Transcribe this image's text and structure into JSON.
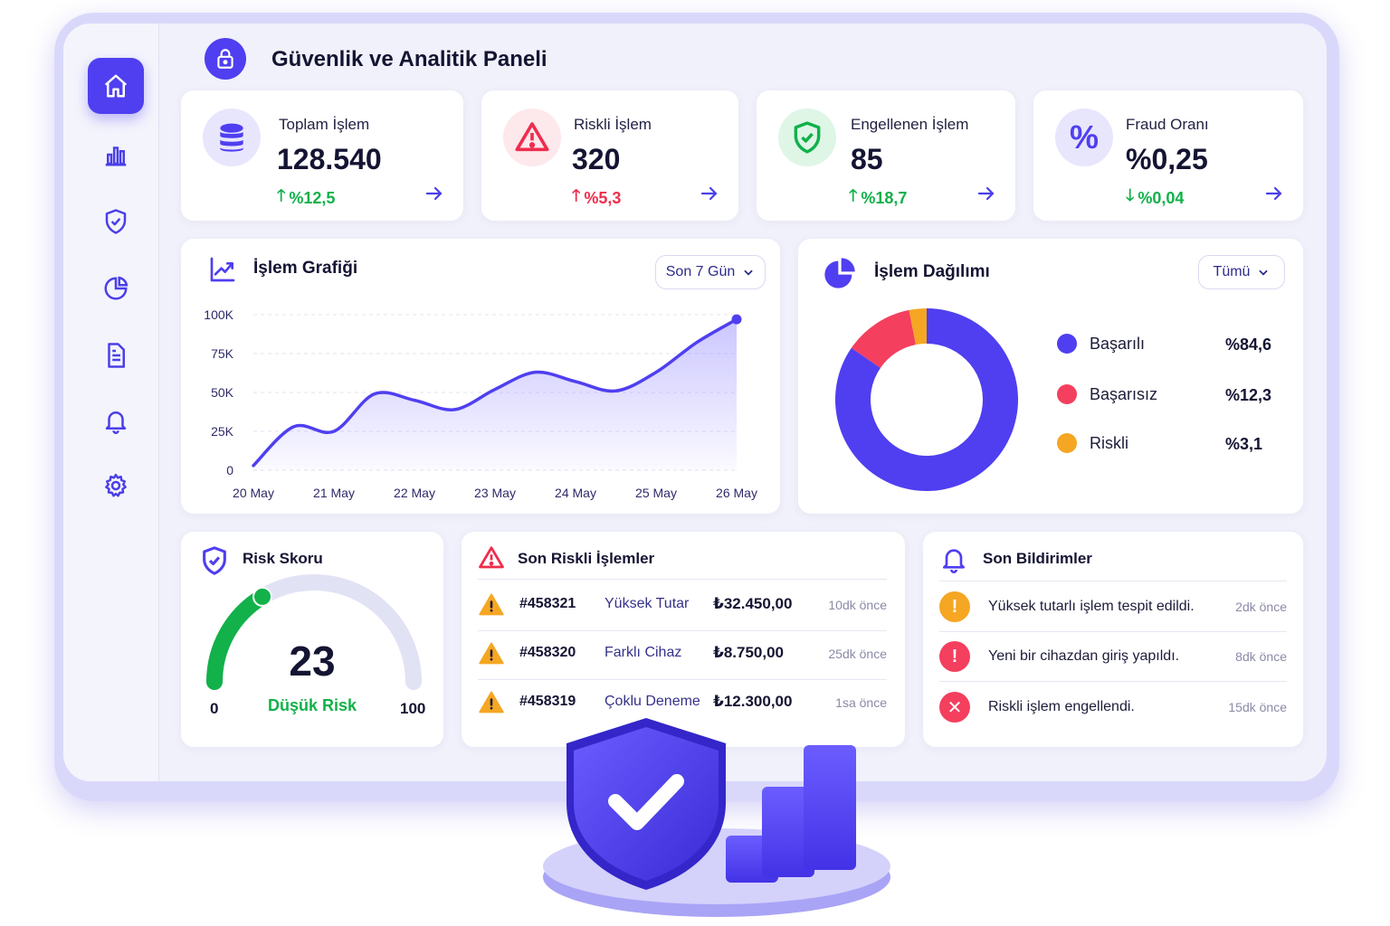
{
  "header": {
    "title": "Güvenlik ve Analitik Paneli",
    "icon": "lock-icon"
  },
  "sidebar": {
    "items": [
      {
        "name": "home",
        "icon": "home-icon",
        "active": true
      },
      {
        "name": "analytics",
        "icon": "bar-chart-icon",
        "active": false
      },
      {
        "name": "security",
        "icon": "shield-check-icon",
        "active": false
      },
      {
        "name": "reports",
        "icon": "pie-chart-icon",
        "active": false
      },
      {
        "name": "documents",
        "icon": "document-icon",
        "active": false
      },
      {
        "name": "notifications",
        "icon": "bell-icon",
        "active": false
      },
      {
        "name": "settings",
        "icon": "gear-icon",
        "active": false
      }
    ]
  },
  "stats": [
    {
      "label": "Toplam İşlem",
      "value": "128.540",
      "change": "%12,5",
      "direction": "up",
      "change_color": "#12b14a",
      "icon": "database-icon"
    },
    {
      "label": "Riskli İşlem",
      "value": "320",
      "change": "%5,3",
      "direction": "up",
      "change_color": "#ef2d4d",
      "icon": "warning-icon"
    },
    {
      "label": "Engellenen İşlem",
      "value": "85",
      "change": "%18,7",
      "direction": "up",
      "change_color": "#12b14a",
      "icon": "shield-check-icon"
    },
    {
      "label": "Fraud Oranı",
      "value": "%0,25",
      "change": "%0,04",
      "direction": "down",
      "change_color": "#12b14a",
      "icon": "percent-icon"
    }
  ],
  "line_chart": {
    "title": "İşlem Grafiği",
    "range_label": "Son 7 Gün",
    "chart_data": {
      "type": "area",
      "categories": [
        "20 May",
        "21 May",
        "22 May",
        "23 May",
        "24 May",
        "25 May",
        "26 May"
      ],
      "x": [
        0,
        0.5,
        1,
        1.5,
        2,
        2.5,
        3,
        3.5,
        4,
        4.5,
        5,
        5.5,
        6
      ],
      "values": [
        3000,
        28000,
        25000,
        49000,
        45000,
        39000,
        52000,
        63000,
        57000,
        51000,
        63000,
        82000,
        97000
      ],
      "ylim": [
        0,
        100000
      ],
      "yticks": [
        0,
        25000,
        50000,
        75000,
        100000
      ],
      "ytick_labels": [
        "0",
        "25K",
        "50K",
        "75K",
        "100K"
      ],
      "grid": true,
      "color": "#4f3ff0"
    }
  },
  "pie_chart": {
    "title": "İşlem Dağılımı",
    "filter_label": "Tümü",
    "chart_data": {
      "type": "pie",
      "donut": true,
      "categories": [
        "Başarılı",
        "Başarısız",
        "Riskli"
      ],
      "values": [
        84.6,
        12.3,
        3.1
      ],
      "value_labels": [
        "%84,6",
        "%12,3",
        "%3,1"
      ],
      "colors": [
        "#4f3ff0",
        "#f43f5e",
        "#f5a623"
      ],
      "legend": "right"
    }
  },
  "risk_score": {
    "title": "Risk Skoru",
    "value": "23",
    "score": 23,
    "level": "Düşük Risk",
    "min": "0",
    "max": "100"
  },
  "risky_tx": {
    "title": "Son Riskli İşlemler",
    "rows": [
      {
        "id": "#458321",
        "type": "Yüksek Tutar",
        "amount": "₺32.450,00",
        "time": "10dk önce"
      },
      {
        "id": "#458320",
        "type": "Farklı Cihaz",
        "amount": "₺8.750,00",
        "time": "25dk önce"
      },
      {
        "id": "#458319",
        "type": "Çoklu Deneme",
        "amount": "₺12.300,00",
        "time": "1sa önce"
      }
    ]
  },
  "notifications": {
    "title": "Son Bildirimler",
    "items": [
      {
        "text": "Yüksek tutarlı işlem tespit edildi.",
        "time": "2dk önce",
        "color": "#f5a623",
        "symbol": "!",
        "icon": "alert-icon"
      },
      {
        "text": "Yeni bir cihazdan giriş yapıldı.",
        "time": "8dk önce",
        "color": "#f43f5e",
        "symbol": "!",
        "icon": "alert-icon"
      },
      {
        "text": "Riskli işlem engellendi.",
        "time": "15dk önce",
        "color": "#f43f5e",
        "symbol": "✕",
        "icon": "blocked-icon"
      }
    ]
  },
  "colors": {
    "accent": "#4f3ff0",
    "success": "#12b14a",
    "danger": "#ef2d4d",
    "warning": "#f5a623"
  }
}
